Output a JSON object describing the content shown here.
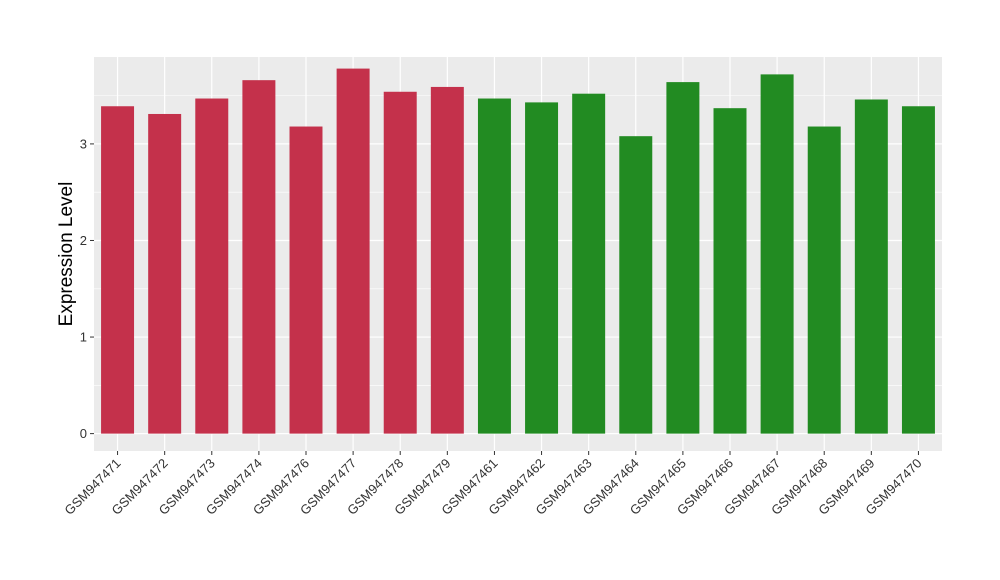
{
  "chart_data": {
    "type": "bar",
    "ylabel": "Expression Level",
    "xlabel": "",
    "ylim": [
      -0.18,
      3.9
    ],
    "yticks": [
      0,
      1,
      2,
      3
    ],
    "grid": true,
    "categories": [
      "GSM947471",
      "GSM947472",
      "GSM947473",
      "GSM947474",
      "GSM947476",
      "GSM947477",
      "GSM947478",
      "GSM947479",
      "GSM947461",
      "GSM947462",
      "GSM947463",
      "GSM947464",
      "GSM947465",
      "GSM947466",
      "GSM947467",
      "GSM947468",
      "GSM947469",
      "GSM947470"
    ],
    "values": [
      3.39,
      3.31,
      3.47,
      3.66,
      3.18,
      3.78,
      3.54,
      3.59,
      3.47,
      3.43,
      3.52,
      3.08,
      3.64,
      3.37,
      3.72,
      3.18,
      3.46,
      3.39
    ],
    "colors": [
      "#c4314b",
      "#c4314b",
      "#c4314b",
      "#c4314b",
      "#c4314b",
      "#c4314b",
      "#c4314b",
      "#c4314b",
      "#228b22",
      "#228b22",
      "#228b22",
      "#228b22",
      "#228b22",
      "#228b22",
      "#228b22",
      "#228b22",
      "#228b22",
      "#228b22"
    ],
    "panel_color": "#ebebeb",
    "grid_color": "#ffffff"
  }
}
